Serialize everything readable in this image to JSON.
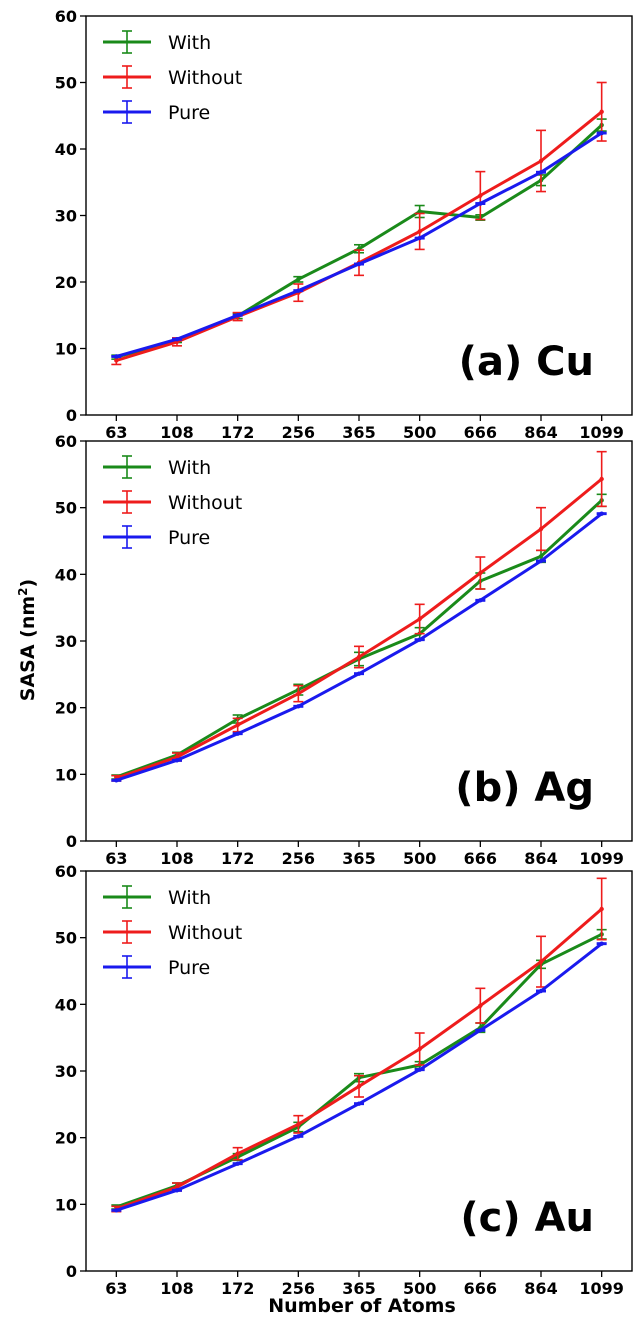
{
  "xlabel": "Number of Atoms",
  "ylabel": "SASA (nm",
  "ylabel_sup": "2",
  "ylabel_close": ")",
  "legend": [
    "With",
    "Without",
    "Pure"
  ],
  "colors": {
    "With": "#1a8a1a",
    "Without": "#ee1c1c",
    "Pure": "#1a1aee"
  },
  "chart_data": [
    {
      "type": "line",
      "label_paren": "(a)",
      "label_metal": "Cu",
      "categories": [
        "63",
        "108",
        "172",
        "256",
        "365",
        "500",
        "666",
        "864",
        "1099"
      ],
      "ylim": [
        0,
        60
      ],
      "yticks": [
        0,
        10,
        20,
        30,
        40,
        50,
        60
      ],
      "legend_position": "top-left",
      "series": [
        {
          "name": "With",
          "values": [
            8.7,
            11.2,
            14.9,
            20.4,
            25.0,
            30.6,
            29.7,
            35.3,
            43.6
          ],
          "errors": [
            0.3,
            0.3,
            0.4,
            0.4,
            0.6,
            0.9,
            0.4,
            0.8,
            0.9
          ]
        },
        {
          "name": "Without",
          "values": [
            8.2,
            11.0,
            14.8,
            18.4,
            22.9,
            27.6,
            33.0,
            38.2,
            45.6
          ],
          "errors": [
            0.6,
            0.6,
            0.6,
            1.3,
            1.9,
            2.7,
            3.6,
            4.6,
            4.4
          ]
        },
        {
          "name": "Pure",
          "values": [
            8.8,
            11.4,
            15.0,
            18.7,
            22.7,
            26.6,
            31.8,
            36.5,
            42.4
          ],
          "errors": [
            0.1,
            0.1,
            0.1,
            0.1,
            0.1,
            0.1,
            0.1,
            0.1,
            0.1
          ]
        }
      ]
    },
    {
      "type": "line",
      "label_paren": "(b)",
      "label_metal": "Ag",
      "categories": [
        "63",
        "108",
        "172",
        "256",
        "365",
        "500",
        "666",
        "864",
        "1099"
      ],
      "ylim": [
        0,
        60
      ],
      "yticks": [
        0,
        10,
        20,
        30,
        40,
        50,
        60
      ],
      "legend_position": "top-left",
      "series": [
        {
          "name": "With",
          "values": [
            9.6,
            12.9,
            18.3,
            22.7,
            27.3,
            31.1,
            39.0,
            42.7,
            51.1
          ],
          "errors": [
            0.3,
            0.4,
            0.6,
            0.8,
            1.0,
            0.9,
            1.2,
            0.9,
            0.9
          ]
        },
        {
          "name": "Without",
          "values": [
            9.4,
            12.6,
            17.4,
            22.1,
            27.6,
            33.3,
            40.2,
            46.8,
            54.3
          ],
          "errors": [
            0.4,
            0.6,
            1.0,
            1.2,
            1.6,
            2.2,
            2.4,
            3.2,
            4.1
          ]
        },
        {
          "name": "Pure",
          "values": [
            9.1,
            12.1,
            16.1,
            20.2,
            25.1,
            30.2,
            36.1,
            42.0,
            49.1
          ],
          "errors": [
            0.1,
            0.1,
            0.1,
            0.1,
            0.1,
            0.1,
            0.1,
            0.1,
            0.1
          ]
        }
      ]
    },
    {
      "type": "line",
      "label_paren": "(c)",
      "label_metal": "Au",
      "categories": [
        "63",
        "108",
        "172",
        "256",
        "365",
        "500",
        "666",
        "864",
        "1099"
      ],
      "ylim": [
        0,
        60
      ],
      "yticks": [
        0,
        10,
        20,
        30,
        40,
        50,
        60
      ],
      "legend_position": "top-left",
      "series": [
        {
          "name": "With",
          "values": [
            9.6,
            12.8,
            17.1,
            21.6,
            29.0,
            30.9,
            36.5,
            46.0,
            50.5
          ],
          "errors": [
            0.3,
            0.4,
            0.5,
            0.7,
            0.6,
            0.5,
            0.7,
            0.6,
            0.7
          ]
        },
        {
          "name": "Without",
          "values": [
            9.3,
            12.6,
            17.6,
            22.0,
            27.7,
            33.3,
            39.8,
            46.4,
            54.3
          ],
          "errors": [
            0.4,
            0.6,
            0.9,
            1.3,
            1.6,
            2.4,
            2.6,
            3.8,
            4.6
          ]
        },
        {
          "name": "Pure",
          "values": [
            9.1,
            12.1,
            16.1,
            20.2,
            25.1,
            30.2,
            36.1,
            42.0,
            49.1
          ],
          "errors": [
            0.1,
            0.1,
            0.1,
            0.1,
            0.1,
            0.1,
            0.1,
            0.1,
            0.1
          ]
        }
      ]
    }
  ]
}
